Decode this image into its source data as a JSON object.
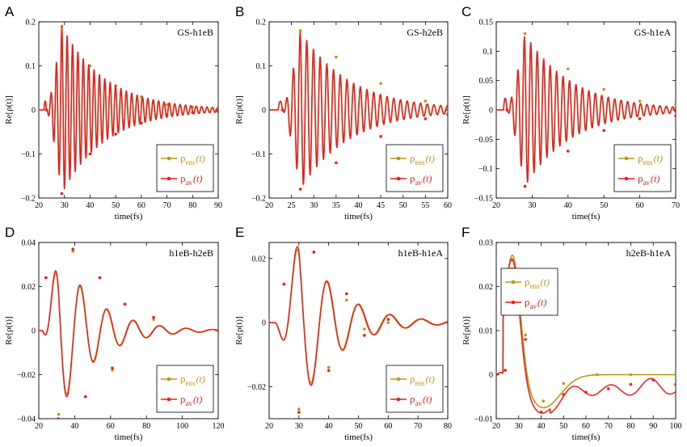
{
  "colors": {
    "ens": "#b89a12",
    "av": "#ee1c1c"
  },
  "legend": {
    "ens": {
      "sym": "ρ",
      "sub": "ens",
      "arg": "(t)"
    },
    "av": {
      "sym": "ρ",
      "sub": "av",
      "arg": "(t)"
    }
  },
  "chart_data": [
    {
      "letter": "A",
      "title": "GS-h1eB",
      "type": "line",
      "xlabel": "time(fs)",
      "ylabel": "Re[ρ(t)]",
      "xlim": [
        20,
        90
      ],
      "ylim": [
        -0.2,
        0.2
      ],
      "xticks": [
        20,
        30,
        40,
        50,
        60,
        70,
        80,
        90
      ],
      "yticks": [
        -0.2,
        -0.1,
        0,
        0.1,
        0.2
      ],
      "yticklabels": [
        "−0.2",
        "−0.1",
        "0",
        "0.1",
        "0.2"
      ],
      "legend_position": "bottom-right",
      "signal": {
        "kind": "osc",
        "t0": 23,
        "tr": 3,
        "A": 0.19,
        "tpk": 29,
        "decay": 17,
        "period": 2.1,
        "phase": 0.1,
        "pre": 0.02,
        "dev": 0.008
      },
      "series": [
        {
          "name": "ρens(t)",
          "x": [
            23,
            29,
            40,
            50,
            60,
            70,
            80,
            90
          ],
          "values": [
            0,
            0.19,
            0.1,
            0.055,
            0.03,
            0.012,
            0.006,
            0.004
          ]
        },
        {
          "name": "ρav(t)",
          "x": [
            23,
            29,
            40,
            50,
            60,
            70,
            80,
            90
          ],
          "values": [
            0,
            -0.19,
            -0.1,
            -0.055,
            -0.03,
            -0.012,
            -0.006,
            -0.004
          ]
        }
      ]
    },
    {
      "letter": "B",
      "title": "GS-h2eB",
      "type": "line",
      "xlabel": "time(fs)",
      "ylabel": "Re[ρ(t)]",
      "xlim": [
        20,
        60
      ],
      "ylim": [
        -0.2,
        0.2
      ],
      "xticks": [
        20,
        25,
        30,
        35,
        40,
        45,
        50,
        55,
        60
      ],
      "yticks": [
        -0.2,
        -0.1,
        0,
        0.1,
        0.2
      ],
      "yticklabels": [
        "−0.2",
        "−0.1",
        "0",
        "0.1",
        "0.2"
      ],
      "legend_position": "bottom-right",
      "signal": {
        "kind": "osc",
        "t0": 23,
        "tr": 2.5,
        "A": 0.18,
        "tpk": 27,
        "decay": 11,
        "period": 1.5,
        "phase": 0.3,
        "pre": 0.02,
        "dev": 0.008
      },
      "series": [
        {
          "name": "ρens(t)",
          "x": [
            23,
            27,
            35,
            45,
            55,
            60
          ],
          "values": [
            0,
            0.18,
            0.12,
            0.06,
            0.02,
            0.01
          ]
        },
        {
          "name": "ρav(t)",
          "x": [
            23,
            27,
            35,
            45,
            55,
            60
          ],
          "values": [
            0,
            -0.18,
            -0.12,
            -0.06,
            -0.02,
            -0.01
          ]
        }
      ]
    },
    {
      "letter": "C",
      "title": "GS-h1eA",
      "type": "line",
      "xlabel": "time(fs)",
      "ylabel": "Re[ρ(t)]",
      "xlim": [
        20,
        70
      ],
      "ylim": [
        -0.15,
        0.15
      ],
      "xticks": [
        20,
        30,
        40,
        50,
        60,
        70
      ],
      "yticks": [
        -0.15,
        -0.1,
        -0.05,
        0,
        0.05,
        0.1,
        0.15
      ],
      "yticklabels": [
        "−0.15",
        "−0.1",
        "−0.05",
        "0",
        "0.05",
        "0.1",
        "0.15"
      ],
      "legend_position": "bottom-right",
      "signal": {
        "kind": "osc",
        "t0": 23,
        "tr": 2.5,
        "A": 0.13,
        "tpk": 28,
        "decay": 13,
        "period": 1.8,
        "phase": 0.6,
        "pre": 0.02,
        "dev": 0.008
      },
      "series": [
        {
          "name": "ρens(t)",
          "x": [
            23,
            28,
            40,
            50,
            60,
            70
          ],
          "values": [
            0,
            0.13,
            0.07,
            0.035,
            0.015,
            0.01
          ]
        },
        {
          "name": "ρav(t)",
          "x": [
            23,
            28,
            40,
            50,
            60,
            70
          ],
          "values": [
            0,
            -0.13,
            -0.07,
            -0.035,
            -0.015,
            -0.01
          ]
        }
      ]
    },
    {
      "letter": "D",
      "title": "h1eB-h2eB",
      "type": "line",
      "xlabel": "time(fs)",
      "ylabel": "Re[ρ(t)]",
      "xlim": [
        20,
        120
      ],
      "ylim": [
        -0.04,
        0.04
      ],
      "xticks": [
        20,
        40,
        60,
        80,
        100,
        120
      ],
      "yticks": [
        -0.04,
        -0.02,
        0,
        0.02,
        0.04
      ],
      "yticklabels": [
        "−0.04",
        "−0.02",
        "0",
        "0.02",
        "0.04"
      ],
      "legend_position": "bottom-right",
      "signal": {
        "kind": "osc",
        "t0": 22,
        "tr": 3,
        "A": 0.038,
        "tpk": 31,
        "decay": 20,
        "period": 14.8,
        "phase": 1.08,
        "pre": 0,
        "dev": 0.04
      },
      "series": [
        {
          "name": "ρens(t)",
          "x": [
            24,
            31,
            39,
            46,
            54,
            61,
            68,
            84,
            120
          ],
          "values": [
            0.024,
            -0.038,
            0.036,
            -0.03,
            0.024,
            -0.018,
            0.012,
            0.005,
            0.0
          ]
        },
        {
          "name": "ρav(t)",
          "x": [
            24,
            31,
            39,
            46,
            54,
            61,
            68,
            84,
            120
          ],
          "values": [
            0.024,
            -0.04,
            0.037,
            -0.03,
            0.024,
            -0.017,
            0.012,
            0.006,
            0.0
          ]
        }
      ]
    },
    {
      "letter": "E",
      "title": "h1eB-h1eA",
      "type": "line",
      "xlabel": "time(fs)",
      "ylabel": "Re[ρ(t)]",
      "xlim": [
        20,
        80
      ],
      "ylim": [
        -0.03,
        0.025
      ],
      "xticks": [
        20,
        30,
        40,
        50,
        60,
        70,
        80
      ],
      "yticks": [
        -0.02,
        0,
        0.02
      ],
      "yticklabels": [
        "−0.02",
        "0",
        "0.02"
      ],
      "legend_position": "bottom-right",
      "signal": {
        "kind": "osc",
        "t0": 22,
        "tr": 2,
        "A": 0.027,
        "tpk": 30,
        "decay": 13,
        "period": 10.6,
        "phase": 0.6,
        "pre": 0,
        "dev": 0.06
      },
      "series": [
        {
          "name": "ρens(t)",
          "x": [
            25,
            30,
            35,
            40,
            46,
            52,
            60,
            80
          ],
          "values": [
            0.012,
            -0.027,
            0.022,
            -0.014,
            0.007,
            -0.002,
            0.0,
            0.0
          ]
        },
        {
          "name": "ρav(t)",
          "x": [
            25,
            30,
            35,
            40,
            46,
            52,
            60,
            80
          ],
          "values": [
            0.012,
            -0.028,
            0.022,
            -0.015,
            0.009,
            -0.004,
            0.001,
            0.0
          ]
        }
      ]
    },
    {
      "letter": "F",
      "title": "h2eB-h1eA",
      "type": "line",
      "xlabel": "time(fs)",
      "ylabel": "Re[ρ(t)]",
      "xlim": [
        20,
        100
      ],
      "ylim": [
        -0.01,
        0.03
      ],
      "xticks": [
        20,
        30,
        40,
        50,
        60,
        70,
        80,
        90,
        100
      ],
      "yticks": [
        -0.01,
        0,
        0.01,
        0.02,
        0.03
      ],
      "yticklabels": [
        "−0.01",
        "0",
        "0.01",
        "0.02",
        "0.03"
      ],
      "legend_position": "top-left",
      "signal": {
        "kind": "pulse"
      },
      "series": [
        {
          "name": "ρens(t)",
          "x": [
            20,
            24,
            27,
            33,
            41,
            50,
            65,
            80,
            100
          ],
          "values": [
            0,
            0.001,
            0.026,
            0.009,
            -0.006,
            -0.002,
            0,
            0,
            0
          ]
        },
        {
          "name": "ρav(t)",
          "x": [
            20,
            24,
            27,
            33,
            40,
            50,
            60,
            70,
            80,
            90,
            100
          ],
          "values": [
            0,
            0.001,
            0.024,
            0.008,
            -0.0085,
            -0.0045,
            -0.004,
            -0.0032,
            -0.0022,
            -0.0012,
            -0.0022
          ]
        }
      ]
    }
  ]
}
